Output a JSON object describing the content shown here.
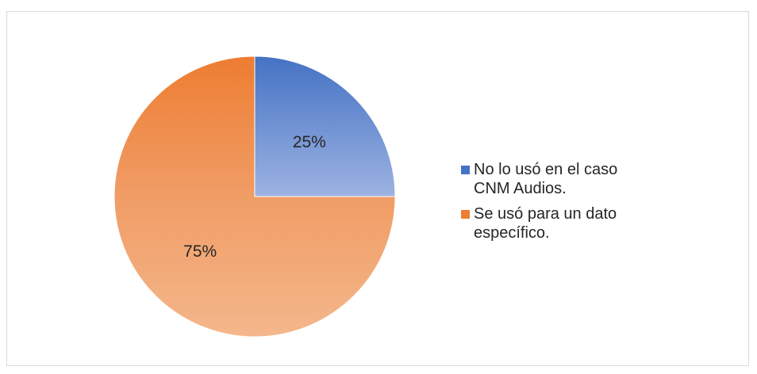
{
  "chart_data": {
    "type": "pie",
    "title": "",
    "categories": [
      "No lo usó en el caso CNM Audios.",
      "Se usó para un dato específico."
    ],
    "values": [
      25,
      75
    ],
    "data_labels": [
      "25%",
      "75%"
    ],
    "colors": [
      "#4472c4",
      "#ed7d31"
    ],
    "legend": {
      "position": "right",
      "items": [
        {
          "line1": "No lo usó en el caso",
          "line2": "CNM Audios."
        },
        {
          "line1": "Se usó para un dato",
          "line2": "específico."
        }
      ]
    }
  }
}
